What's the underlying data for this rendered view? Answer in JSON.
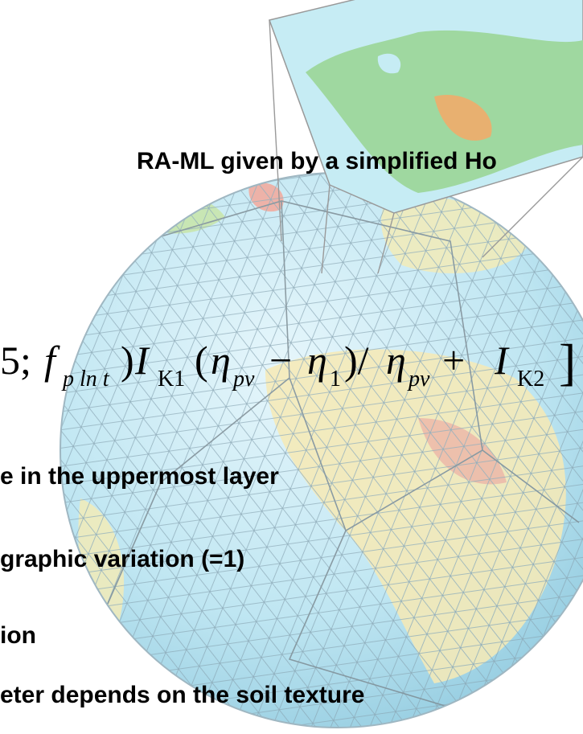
{
  "text": {
    "heading": "RA-ML given by a simplified  Ho",
    "lines": [
      "e in the uppermost layer",
      "graphic variation (=1)",
      "ion",
      "eter depends on the soil texture"
    ]
  },
  "formula": [
    "5;",
    "f",
    "p ln t",
    ")",
    "I",
    "K1",
    "(",
    "η",
    "pv",
    "−",
    "η",
    "1",
    ")/",
    "η",
    "pv",
    "+",
    "I",
    "K2",
    "]"
  ]
}
